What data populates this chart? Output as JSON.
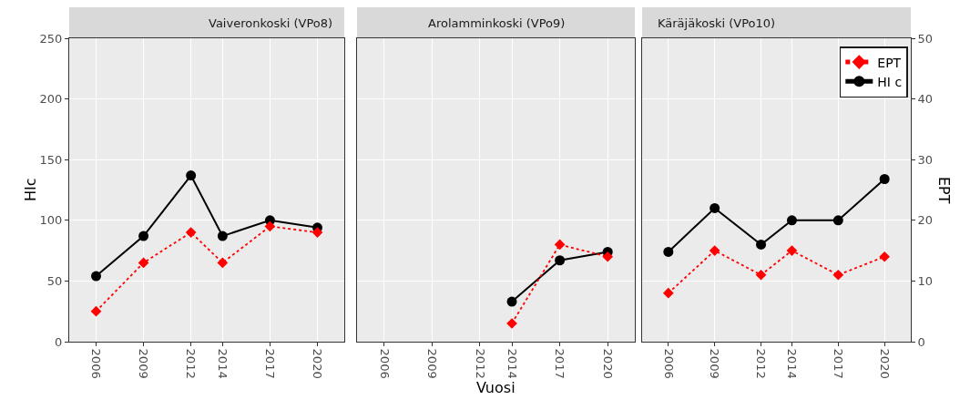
{
  "chart_data": [
    {
      "type": "line",
      "title": "Vaiveronkoski (VPo8)",
      "ylabel": "HIc",
      "x": [
        2006,
        2009,
        2012,
        2014,
        2017,
        2020
      ],
      "xlim": [
        2004.3,
        2021.7
      ],
      "xticks": [
        2006,
        2009,
        2012,
        2014,
        2017,
        2020
      ],
      "ylim": [
        0,
        250
      ],
      "yticks": [
        0,
        50,
        100,
        150,
        200,
        250
      ],
      "y2lim": [
        0,
        50
      ],
      "grid": true,
      "legend": false,
      "series": [
        {
          "color": "#ff0000",
          "axis": "y2",
          "marker": "diamond",
          "line_style": "dotted",
          "values": [
            5,
            13,
            18,
            13,
            19,
            18
          ]
        },
        {
          "color": "#000000",
          "marker": "circle",
          "line_style": "solid",
          "values": [
            54,
            87,
            137,
            87,
            100,
            94
          ]
        }
      ]
    },
    {
      "type": "line",
      "title": "Arolamminkoski (VPo9)",
      "xlabel": "Vuosi",
      "xlim": [
        2004.3,
        2021.7
      ],
      "xticks": [
        2006,
        2009,
        2012,
        2014,
        2017,
        2020
      ],
      "ylim": [
        0,
        250
      ],
      "yticks": [
        0,
        50,
        100,
        150,
        200,
        250
      ],
      "y2lim": [
        0,
        50
      ],
      "y2ticks": [
        0,
        10,
        20,
        30,
        40,
        50
      ],
      "grid": true,
      "tick_labels": "x",
      "legend": false,
      "series": [
        {
          "color": "#ff0000",
          "axis": "y2",
          "marker": "diamond",
          "line_style": "dotted",
          "x": [
            2014,
            2017,
            2020
          ],
          "values": [
            3,
            16,
            14
          ]
        },
        {
          "color": "#000000",
          "marker": "circle",
          "line_style": "solid",
          "x": [
            2014,
            2017,
            2020
          ],
          "values": [
            33,
            67,
            74
          ]
        }
      ]
    },
    {
      "type": "line",
      "title": "Käräjäkoski (VPo10)",
      "y2label": "EPT",
      "x": [
        2006,
        2009,
        2012,
        2014,
        2017,
        2020
      ],
      "xlim": [
        2004.3,
        2021.7
      ],
      "xticks": [
        2006,
        2009,
        2012,
        2014,
        2017,
        2020
      ],
      "ylim": [
        0,
        250
      ],
      "y2lim": [
        0,
        50
      ],
      "y2ticks": [
        0,
        10,
        20,
        30,
        40,
        50
      ],
      "grid": true,
      "legend": "top right",
      "series": [
        {
          "name": "EPT",
          "color": "#ff0000",
          "axis": "y2",
          "marker": "diamond",
          "line_style": "dotted",
          "values": [
            8,
            15,
            11,
            15,
            11,
            14
          ]
        },
        {
          "name": "HI c",
          "color": "#000000",
          "marker": "circle",
          "line_style": "solid",
          "values": [
            74,
            110,
            80,
            100,
            100,
            134
          ]
        }
      ]
    }
  ]
}
